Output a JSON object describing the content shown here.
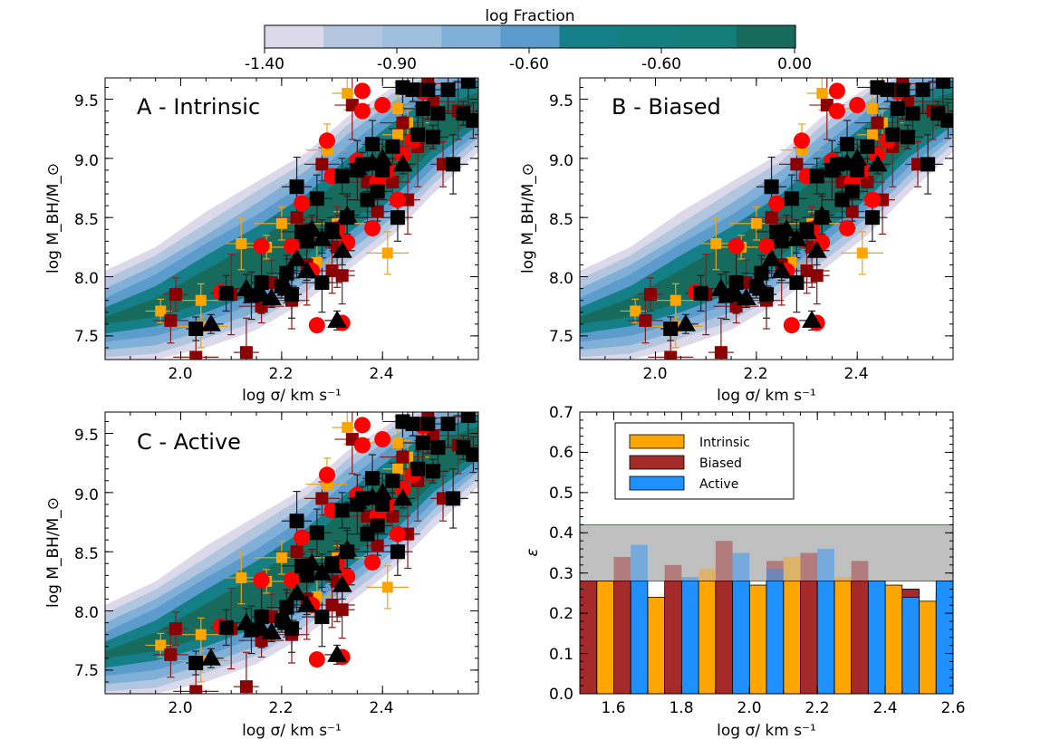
{
  "colorbar": {
    "title": "log Fraction",
    "tick_labels": [
      "-1.40",
      "-0.90",
      "-0.60",
      "-0.60",
      "0.00"
    ],
    "colors": [
      "#dcd9ea",
      "#b3c6e0",
      "#9ebfdd",
      "#80b0d7",
      "#5b9ccc",
      "#157f87",
      "#157f80",
      "#157e7d",
      "#166b5c"
    ]
  },
  "chart_data": [
    {
      "id": "A",
      "type": "scatter",
      "panel_label": "A - Intrinsic",
      "xlabel": "log σ/ km s⁻¹",
      "ylabel": "log M_BH/M_⊙",
      "xlim": [
        1.85,
        2.59
      ],
      "ylim": [
        7.3,
        9.68
      ],
      "xticks": [
        2.0,
        2.2,
        2.4
      ],
      "xtick_labels": [
        "2.0",
        "2.2",
        "2.4"
      ],
      "yticks": [
        7.5,
        8.0,
        8.5,
        9.0,
        9.5
      ],
      "ytick_labels": [
        "7.5",
        "8.0",
        "8.5",
        "9.0",
        "9.5"
      ]
    },
    {
      "id": "B",
      "type": "scatter",
      "panel_label": "B - Biased",
      "xlabel": "log σ/ km s⁻¹",
      "ylabel": "log M_BH/M_⊙",
      "xlim": [
        1.85,
        2.59
      ],
      "ylim": [
        7.3,
        9.68
      ],
      "xticks": [
        2.0,
        2.2,
        2.4
      ],
      "xtick_labels": [
        "2.0",
        "2.2",
        "2.4"
      ],
      "yticks": [
        7.5,
        8.0,
        8.5,
        9.0,
        9.5
      ],
      "ytick_labels": [
        "7.5",
        "8.0",
        "8.5",
        "9.0",
        "9.5"
      ]
    },
    {
      "id": "C",
      "type": "scatter",
      "panel_label": "C - Active",
      "xlabel": "log σ/ km s⁻¹",
      "ylabel": "log M_BH/M_⊙",
      "xlim": [
        1.85,
        2.59
      ],
      "ylim": [
        7.3,
        9.68
      ],
      "xticks": [
        2.0,
        2.2,
        2.4
      ],
      "xtick_labels": [
        "2.0",
        "2.2",
        "2.4"
      ],
      "yticks": [
        7.5,
        8.0,
        8.5,
        9.0,
        9.5
      ],
      "ytick_labels": [
        "7.5",
        "8.0",
        "8.5",
        "9.0",
        "9.5"
      ]
    },
    {
      "id": "D",
      "type": "bar",
      "xlabel": "log σ/ km s⁻¹",
      "ylabel": "ε",
      "xlim": [
        1.5,
        2.6
      ],
      "ylim": [
        0.0,
        0.7
      ],
      "xticks": [
        1.6,
        1.8,
        2.0,
        2.2,
        2.4,
        2.6
      ],
      "xtick_labels": [
        "1.6",
        "1.8",
        "2.0",
        "2.2",
        "2.4",
        "2.6"
      ],
      "yticks": [
        0.0,
        0.1,
        0.2,
        0.3,
        0.4,
        0.5,
        0.6,
        0.7
      ],
      "ytick_labels": [
        "0.0",
        "0.1",
        "0.2",
        "0.3",
        "0.4",
        "0.5",
        "0.6",
        "0.7"
      ],
      "band": [
        0.28,
        0.42
      ],
      "categories": [
        "1.50",
        "1.55",
        "1.60",
        "1.65",
        "1.70",
        "1.75",
        "1.80",
        "1.85",
        "1.90",
        "1.95",
        "2.00",
        "2.05",
        "2.10",
        "2.15",
        "2.20",
        "2.25",
        "2.30",
        "2.35",
        "2.40",
        "2.45",
        "2.50",
        "2.55"
      ],
      "series": [
        {
          "name": "Intrinsic",
          "color": "#ffa500",
          "values": [
            null,
            0.28,
            null,
            null,
            0.24,
            null,
            null,
            0.31,
            null,
            null,
            0.27,
            null,
            0.34,
            null,
            null,
            0.29,
            null,
            null,
            0.27,
            null,
            0.23,
            null
          ]
        },
        {
          "name": "Biased",
          "color": "#a52a2a",
          "values": [
            0.28,
            null,
            0.34,
            null,
            null,
            0.32,
            null,
            null,
            0.38,
            null,
            null,
            0.33,
            null,
            0.35,
            null,
            null,
            0.33,
            null,
            null,
            0.26,
            null,
            0.25
          ]
        },
        {
          "name": "Active",
          "color": "#1e90ff",
          "values": [
            null,
            null,
            null,
            0.37,
            null,
            null,
            0.29,
            null,
            null,
            0.35,
            null,
            0.31,
            null,
            null,
            0.36,
            null,
            null,
            0.28,
            null,
            0.24,
            null,
            0.28
          ]
        }
      ],
      "legend": {
        "position": "top-left",
        "entries": [
          "Intrinsic",
          "Biased",
          "Active"
        ]
      }
    }
  ],
  "observations": {
    "orange_squares": [
      [
        1.96,
        7.71
      ],
      [
        2.04,
        7.8
      ],
      [
        2.04,
        7.58
      ],
      [
        2.12,
        8.28
      ],
      [
        2.17,
        8.25
      ],
      [
        2.2,
        8.45
      ],
      [
        2.27,
        8.12
      ],
      [
        2.29,
        9.07
      ],
      [
        2.31,
        8.45
      ],
      [
        2.33,
        9.55
      ],
      [
        2.41,
        8.2
      ],
      [
        2.43,
        9.42
      ],
      [
        2.43,
        9.2
      ],
      [
        2.45,
        9.3
      ]
    ],
    "darkred_squares": [
      [
        1.99,
        7.85
      ],
      [
        1.98,
        7.63
      ],
      [
        2.03,
        7.32
      ],
      [
        2.13,
        7.36
      ],
      [
        2.1,
        7.85
      ],
      [
        2.16,
        7.75
      ],
      [
        2.18,
        7.95
      ],
      [
        2.22,
        7.8
      ],
      [
        2.23,
        8.5
      ],
      [
        2.25,
        8.1
      ],
      [
        2.28,
        8.95
      ],
      [
        2.3,
        8.05
      ],
      [
        2.32,
        8.01
      ],
      [
        2.34,
        9.45
      ],
      [
        2.37,
        8.8
      ],
      [
        2.39,
        8.55
      ],
      [
        2.42,
        8.8
      ],
      [
        2.44,
        9.3
      ],
      [
        2.45,
        8.65
      ],
      [
        2.47,
        9.1
      ],
      [
        2.5,
        9.48
      ],
      [
        2.52,
        8.95
      ],
      [
        2.55,
        9.4
      ],
      [
        2.49,
        9.63
      ],
      [
        2.31,
        8.25
      ]
    ],
    "red_circles": [
      [
        2.08,
        7.87
      ],
      [
        2.16,
        8.26
      ],
      [
        2.22,
        8.26
      ],
      [
        2.24,
        8.62
      ],
      [
        2.26,
        8.05
      ],
      [
        2.27,
        7.59
      ],
      [
        2.29,
        9.15
      ],
      [
        2.3,
        8.85
      ],
      [
        2.31,
        8.4
      ],
      [
        2.32,
        7.61
      ],
      [
        2.33,
        8.29
      ],
      [
        2.36,
        9.4
      ],
      [
        2.38,
        8.41
      ],
      [
        2.39,
        8.8
      ],
      [
        2.41,
        8.9
      ],
      [
        2.43,
        8.65
      ],
      [
        2.44,
        9.03
      ],
      [
        2.46,
        9.15
      ],
      [
        2.48,
        9.56
      ],
      [
        2.36,
        9.57
      ],
      [
        2.35,
        8.98
      ],
      [
        2.4,
        9.45
      ]
    ],
    "black_squares": [
      [
        2.03,
        7.56
      ],
      [
        2.09,
        7.86
      ],
      [
        2.14,
        7.84
      ],
      [
        2.16,
        7.95
      ],
      [
        2.2,
        7.92
      ],
      [
        2.21,
        8.03
      ],
      [
        2.22,
        7.85
      ],
      [
        2.23,
        8.76
      ],
      [
        2.24,
        8.38
      ],
      [
        2.25,
        8.3
      ],
      [
        2.27,
        8.66
      ],
      [
        2.28,
        7.95
      ],
      [
        2.3,
        8.4
      ],
      [
        2.32,
        8.85
      ],
      [
        2.33,
        8.5
      ],
      [
        2.35,
        8.9
      ],
      [
        2.36,
        8.95
      ],
      [
        2.37,
        8.65
      ],
      [
        2.38,
        9.12
      ],
      [
        2.39,
        8.72
      ],
      [
        2.4,
        8.9
      ],
      [
        2.42,
        9.1
      ],
      [
        2.43,
        8.5
      ],
      [
        2.44,
        9.6
      ],
      [
        2.46,
        9.58
      ],
      [
        2.47,
        9.2
      ],
      [
        2.48,
        9.42
      ],
      [
        2.49,
        9.58
      ],
      [
        2.5,
        9.18
      ],
      [
        2.51,
        9.38
      ],
      [
        2.53,
        9.58
      ],
      [
        2.54,
        8.95
      ],
      [
        2.56,
        9.38
      ],
      [
        2.58,
        9.32
      ],
      [
        2.57,
        9.65
      ]
    ],
    "black_triangles": [
      [
        2.06,
        7.6
      ],
      [
        2.13,
        7.9
      ],
      [
        2.16,
        7.85
      ],
      [
        2.18,
        7.82
      ],
      [
        2.21,
        7.9
      ],
      [
        2.23,
        8.15
      ],
      [
        2.25,
        8.05
      ],
      [
        2.26,
        8.4
      ],
      [
        2.28,
        8.32
      ],
      [
        2.31,
        7.63
      ],
      [
        2.32,
        8.22
      ],
      [
        2.33,
        8.52
      ],
      [
        2.35,
        8.92
      ],
      [
        2.38,
        8.96
      ],
      [
        2.4,
        9.0
      ],
      [
        2.44,
        8.95
      ],
      [
        2.3,
        8.38
      ]
    ]
  }
}
